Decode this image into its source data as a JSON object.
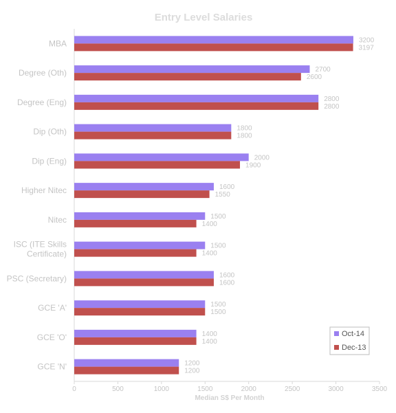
{
  "chart_data": {
    "type": "bar",
    "orientation": "horizontal",
    "title": "Entry Level Salaries",
    "xlabel": "Median  S$ Per Month",
    "ylabel": "",
    "xlim": [
      0,
      3500
    ],
    "xticks": [
      0,
      500,
      1000,
      1500,
      2000,
      2500,
      3000,
      3500
    ],
    "grid": false,
    "legend_position": "bottom-right",
    "categories": [
      "MBA",
      "Degree (Oth)",
      "Degree (Eng)",
      "Dip (Oth)",
      "Dip (Eng)",
      "Higher Nitec",
      "Nitec",
      "ISC (ITE Skills|Certificate)",
      "PSC (Secretary)",
      "GCE 'A'",
      "GCE 'O'",
      "GCE 'N'"
    ],
    "series": [
      {
        "name": "Oct-14",
        "color": "#9a80f0",
        "values": [
          3200,
          2700,
          2800,
          1800,
          2000,
          1600,
          1500,
          1500,
          1600,
          1500,
          1400,
          1200
        ]
      },
      {
        "name": "Dec-13",
        "color": "#c0504d",
        "values": [
          3197,
          2600,
          2800,
          1800,
          1900,
          1550,
          1400,
          1400,
          1600,
          1500,
          1400,
          1200
        ]
      }
    ]
  }
}
